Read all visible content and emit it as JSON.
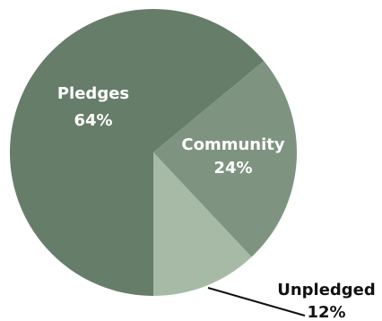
{
  "chart_data": {
    "type": "pie",
    "slices": [
      {
        "label": "Pledges",
        "value": 64,
        "display": "64%",
        "color": "#667e69"
      },
      {
        "label": "Community",
        "value": 24,
        "display": "24%",
        "color": "#7e9480"
      },
      {
        "label": "Unpledged",
        "value": 12,
        "display": "12%",
        "color": "#a6baa6"
      }
    ],
    "leader_line_color": "#111111"
  }
}
